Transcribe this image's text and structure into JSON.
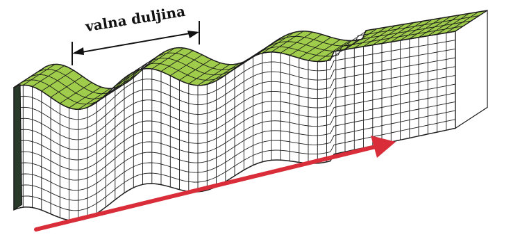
{
  "labels": {
    "wavelength": "valna duljina"
  },
  "colors": {
    "surface_top": "#9fcc4a",
    "surface_top_dark": "#7fb23a",
    "side_face": "#ffffff",
    "grid_line": "#1c1c1c",
    "end_face": "#2a3a2a",
    "arrow": "#d92e3a",
    "dimension_line": "#111111"
  }
}
